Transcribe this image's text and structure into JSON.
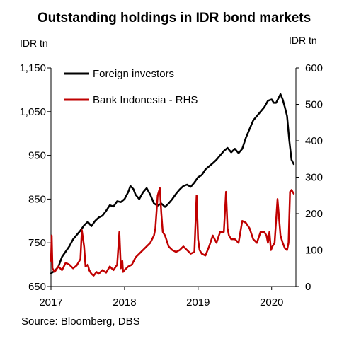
{
  "chart_data": {
    "type": "line",
    "title": "Outstanding holdings in IDR bond markets",
    "ylabel_left": "IDR tn",
    "ylabel_right": "IDR tn",
    "source": "Source: Bloomberg, DBS",
    "ylim_left": [
      650,
      1150
    ],
    "ylim_right": [
      0,
      600
    ],
    "xlim": [
      2017.0,
      2020.33
    ],
    "yticks_left": [
      "650",
      "750",
      "850",
      "950",
      "1,050",
      "1,150"
    ],
    "yticks_left_values": [
      650,
      750,
      850,
      950,
      1050,
      1150
    ],
    "yticks_right": [
      "0",
      "100",
      "200",
      "300",
      "400",
      "500",
      "600"
    ],
    "yticks_right_values": [
      0,
      100,
      200,
      300,
      400,
      500,
      600
    ],
    "xticks": [
      "2017",
      "2018",
      "2019",
      "2020"
    ],
    "xticks_values": [
      2017,
      2018,
      2019,
      2020
    ],
    "legend_position": "top-left",
    "series": [
      {
        "name": "Foreign investors",
        "axis": "left",
        "color": "#000000",
        "x": [
          2017.0,
          2017.05,
          2017.1,
          2017.15,
          2017.2,
          2017.25,
          2017.3,
          2017.35,
          2017.4,
          2017.45,
          2017.5,
          2017.55,
          2017.6,
          2017.65,
          2017.7,
          2017.75,
          2017.8,
          2017.85,
          2017.9,
          2017.95,
          2018.0,
          2018.05,
          2018.08,
          2018.12,
          2018.15,
          2018.2,
          2018.25,
          2018.3,
          2018.35,
          2018.4,
          2018.45,
          2018.5,
          2018.55,
          2018.6,
          2018.65,
          2018.7,
          2018.75,
          2018.8,
          2018.85,
          2018.9,
          2018.95,
          2019.0,
          2019.05,
          2019.1,
          2019.15,
          2019.2,
          2019.25,
          2019.3,
          2019.35,
          2019.4,
          2019.45,
          2019.5,
          2019.55,
          2019.6,
          2019.65,
          2019.7,
          2019.75,
          2019.8,
          2019.85,
          2019.9,
          2019.95,
          2020.0,
          2020.03,
          2020.06,
          2020.09,
          2020.12,
          2020.15,
          2020.18,
          2020.21,
          2020.24,
          2020.27,
          2020.3
        ],
        "values": [
          680,
          686,
          695,
          718,
          730,
          742,
          758,
          768,
          778,
          790,
          798,
          788,
          800,
          808,
          812,
          823,
          836,
          833,
          845,
          843,
          850,
          866,
          880,
          873,
          860,
          850,
          865,
          875,
          860,
          840,
          835,
          840,
          832,
          840,
          850,
          862,
          872,
          880,
          883,
          878,
          888,
          900,
          905,
          918,
          925,
          932,
          940,
          950,
          960,
          967,
          957,
          965,
          955,
          965,
          990,
          1010,
          1030,
          1040,
          1050,
          1060,
          1075,
          1078,
          1070,
          1070,
          1080,
          1090,
          1078,
          1060,
          1040,
          985,
          940,
          930
        ]
      },
      {
        "name": "Bank Indonesia - RHS",
        "axis": "right",
        "color": "#c00000",
        "x": [
          2017.0,
          2017.01,
          2017.02,
          2017.05,
          2017.1,
          2017.15,
          2017.2,
          2017.25,
          2017.3,
          2017.35,
          2017.4,
          2017.42,
          2017.45,
          2017.47,
          2017.5,
          2017.52,
          2017.55,
          2017.58,
          2017.62,
          2017.65,
          2017.7,
          2017.75,
          2017.8,
          2017.85,
          2017.9,
          2017.93,
          2017.95,
          2017.97,
          2017.98,
          2018.0,
          2018.05,
          2018.1,
          2018.15,
          2018.2,
          2018.25,
          2018.3,
          2018.35,
          2018.4,
          2018.42,
          2018.45,
          2018.48,
          2018.5,
          2018.52,
          2018.55,
          2018.6,
          2018.65,
          2018.7,
          2018.75,
          2018.8,
          2018.85,
          2018.9,
          2018.95,
          2018.98,
          2019.0,
          2019.02,
          2019.05,
          2019.1,
          2019.15,
          2019.2,
          2019.25,
          2019.3,
          2019.35,
          2019.38,
          2019.4,
          2019.42,
          2019.45,
          2019.5,
          2019.55,
          2019.6,
          2019.65,
          2019.7,
          2019.75,
          2019.8,
          2019.85,
          2019.9,
          2019.93,
          2019.95,
          2019.97,
          2019.99,
          2020.01,
          2020.04,
          2020.08,
          2020.12,
          2020.15,
          2020.18,
          2020.21,
          2020.23,
          2020.25,
          2020.27,
          2020.3
        ],
        "values": [
          70,
          140,
          50,
          40,
          55,
          45,
          65,
          60,
          50,
          58,
          75,
          155,
          110,
          55,
          60,
          45,
          35,
          30,
          40,
          35,
          45,
          38,
          55,
          45,
          60,
          150,
          50,
          70,
          40,
          45,
          55,
          60,
          80,
          90,
          100,
          110,
          120,
          140,
          160,
          250,
          270,
          200,
          150,
          140,
          110,
          100,
          95,
          100,
          110,
          100,
          90,
          95,
          250,
          130,
          100,
          90,
          85,
          110,
          140,
          120,
          150,
          150,
          260,
          160,
          140,
          130,
          130,
          120,
          180,
          175,
          160,
          130,
          120,
          150,
          150,
          140,
          120,
          150,
          100,
          110,
          120,
          240,
          140,
          120,
          105,
          100,
          120,
          260,
          265,
          255
        ]
      }
    ]
  }
}
